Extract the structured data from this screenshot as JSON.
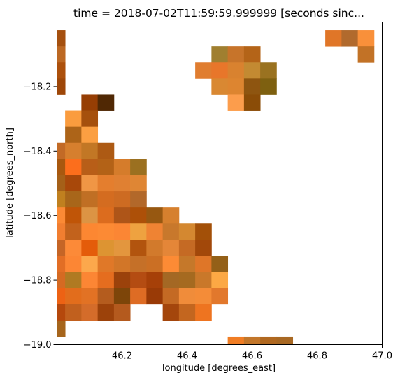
{
  "chart_data": {
    "type": "heatmap",
    "title": "time = 2018-07-02T11:59:59.999999 [seconds sinc...",
    "xlabel": "longitude [degrees_east]",
    "ylabel": "latitude [degrees_north]",
    "xlim": [
      46.0,
      47.0
    ],
    "ylim": [
      -19.0,
      -18.0
    ],
    "x_ticks": [
      46.2,
      46.4,
      46.6,
      46.8,
      47.0
    ],
    "x_tick_labels": [
      "46.2",
      "46.4",
      "46.6",
      "46.8",
      "47.0"
    ],
    "y_ticks": [
      -18.2,
      -18.4,
      -18.6,
      -18.8,
      -19.0
    ],
    "y_tick_labels": [
      "−18.2",
      "−18.4",
      "−18.6",
      "−18.8",
      "−19.0"
    ],
    "grid": false,
    "cell_size": 0.05,
    "cells": [
      {
        "x": 46.0,
        "y": -18.05,
        "c": "#a5500f"
      },
      {
        "x": 46.0,
        "y": -18.1,
        "c": "#bc6823"
      },
      {
        "x": 46.0,
        "y": -18.15,
        "c": "#ac500c"
      },
      {
        "x": 46.0,
        "y": -18.2,
        "c": "#9e4708"
      },
      {
        "x": 46.85,
        "y": -18.05,
        "c": "#e07628"
      },
      {
        "x": 46.9,
        "y": -18.05,
        "c": "#b16a2d"
      },
      {
        "x": 46.95,
        "y": -18.05,
        "c": "#f9903a"
      },
      {
        "x": 46.95,
        "y": -18.1,
        "c": "#c27226"
      },
      {
        "x": 46.5,
        "y": -18.1,
        "c": "#a07f30"
      },
      {
        "x": 46.55,
        "y": -18.1,
        "c": "#c7742a"
      },
      {
        "x": 46.6,
        "y": -18.1,
        "c": "#b46418"
      },
      {
        "x": 46.45,
        "y": -18.15,
        "c": "#e07d30"
      },
      {
        "x": 46.5,
        "y": -18.15,
        "c": "#e8762a"
      },
      {
        "x": 46.55,
        "y": -18.15,
        "c": "#d9822f"
      },
      {
        "x": 46.6,
        "y": -18.15,
        "c": "#c38a32"
      },
      {
        "x": 46.65,
        "y": -18.15,
        "c": "#9a7220"
      },
      {
        "x": 46.5,
        "y": -18.2,
        "c": "#d98832"
      },
      {
        "x": 46.55,
        "y": -18.2,
        "c": "#dd8530"
      },
      {
        "x": 46.6,
        "y": -18.2,
        "c": "#8e5510"
      },
      {
        "x": 46.65,
        "y": -18.2,
        "c": "#7e6010"
      },
      {
        "x": 46.55,
        "y": -18.25,
        "c": "#fc9d4c"
      },
      {
        "x": 46.6,
        "y": -18.25,
        "c": "#8a4c07"
      },
      {
        "x": 46.1,
        "y": -18.25,
        "c": "#963e04"
      },
      {
        "x": 46.15,
        "y": -18.25,
        "c": "#502804"
      },
      {
        "x": 46.05,
        "y": -18.3,
        "c": "#fa9c3e"
      },
      {
        "x": 46.1,
        "y": -18.3,
        "c": "#a5500d"
      },
      {
        "x": 46.05,
        "y": -18.35,
        "c": "#ad6418"
      },
      {
        "x": 46.1,
        "y": -18.35,
        "c": "#fb9f42"
      },
      {
        "x": 46.0,
        "y": -18.4,
        "c": "#c26a26"
      },
      {
        "x": 46.05,
        "y": -18.4,
        "c": "#d67f2e"
      },
      {
        "x": 46.1,
        "y": -18.4,
        "c": "#c27725"
      },
      {
        "x": 46.15,
        "y": -18.4,
        "c": "#ad5a14"
      },
      {
        "x": 46.0,
        "y": -18.45,
        "c": "#a8580f"
      },
      {
        "x": 46.05,
        "y": -18.45,
        "c": "#fc6e1c"
      },
      {
        "x": 46.1,
        "y": -18.45,
        "c": "#b85e18"
      },
      {
        "x": 46.15,
        "y": -18.45,
        "c": "#b36217"
      },
      {
        "x": 46.2,
        "y": -18.45,
        "c": "#d57c2b"
      },
      {
        "x": 46.25,
        "y": -18.45,
        "c": "#9b7020"
      },
      {
        "x": 46.0,
        "y": -18.5,
        "c": "#a56018"
      },
      {
        "x": 46.05,
        "y": -18.5,
        "c": "#a8480a"
      },
      {
        "x": 46.1,
        "y": -18.5,
        "c": "#f09645"
      },
      {
        "x": 46.15,
        "y": -18.5,
        "c": "#e47e2e"
      },
      {
        "x": 46.2,
        "y": -18.5,
        "c": "#e08032"
      },
      {
        "x": 46.25,
        "y": -18.5,
        "c": "#df8634"
      },
      {
        "x": 46.0,
        "y": -18.55,
        "c": "#c0801f"
      },
      {
        "x": 46.05,
        "y": -18.55,
        "c": "#a8661a"
      },
      {
        "x": 46.1,
        "y": -18.55,
        "c": "#c06f24"
      },
      {
        "x": 46.15,
        "y": -18.55,
        "c": "#d46c20"
      },
      {
        "x": 46.2,
        "y": -18.55,
        "c": "#cd6b22"
      },
      {
        "x": 46.25,
        "y": -18.55,
        "c": "#b2682a"
      },
      {
        "x": 46.0,
        "y": -18.6,
        "c": "#fb8a35"
      },
      {
        "x": 46.05,
        "y": -18.6,
        "c": "#c05507"
      },
      {
        "x": 46.1,
        "y": -18.6,
        "c": "#dc9444"
      },
      {
        "x": 46.15,
        "y": -18.6,
        "c": "#dc6c1e"
      },
      {
        "x": 46.2,
        "y": -18.6,
        "c": "#ae5518"
      },
      {
        "x": 46.25,
        "y": -18.6,
        "c": "#ad5008"
      },
      {
        "x": 46.3,
        "y": -18.6,
        "c": "#975811"
      },
      {
        "x": 46.35,
        "y": -18.6,
        "c": "#d6802e"
      },
      {
        "x": 46.0,
        "y": -18.65,
        "c": "#f17e30"
      },
      {
        "x": 46.05,
        "y": -18.65,
        "c": "#c2621c"
      },
      {
        "x": 46.1,
        "y": -18.65,
        "c": "#fc8732"
      },
      {
        "x": 46.15,
        "y": -18.65,
        "c": "#fc8a34"
      },
      {
        "x": 46.2,
        "y": -18.65,
        "c": "#fb8634"
      },
      {
        "x": 46.25,
        "y": -18.65,
        "c": "#eea240"
      },
      {
        "x": 46.3,
        "y": -18.65,
        "c": "#ef8333"
      },
      {
        "x": 46.35,
        "y": -18.65,
        "c": "#c8782c"
      },
      {
        "x": 46.4,
        "y": -18.65,
        "c": "#d48830"
      },
      {
        "x": 46.45,
        "y": -18.65,
        "c": "#a35008"
      },
      {
        "x": 46.0,
        "y": -18.7,
        "c": "#c56526"
      },
      {
        "x": 46.05,
        "y": -18.7,
        "c": "#fc8a38"
      },
      {
        "x": 46.1,
        "y": -18.7,
        "c": "#e45c0a"
      },
      {
        "x": 46.15,
        "y": -18.7,
        "c": "#dd9432"
      },
      {
        "x": 46.2,
        "y": -18.7,
        "c": "#e3963e"
      },
      {
        "x": 46.25,
        "y": -18.7,
        "c": "#b2540e"
      },
      {
        "x": 46.3,
        "y": -18.7,
        "c": "#d27a2c"
      },
      {
        "x": 46.35,
        "y": -18.7,
        "c": "#e48638"
      },
      {
        "x": 46.4,
        "y": -18.7,
        "c": "#c56a24"
      },
      {
        "x": 46.45,
        "y": -18.7,
        "c": "#a2480a"
      },
      {
        "x": 46.0,
        "y": -18.75,
        "c": "#e26e25"
      },
      {
        "x": 46.05,
        "y": -18.75,
        "c": "#fc8634"
      },
      {
        "x": 46.1,
        "y": -18.75,
        "c": "#fca84c"
      },
      {
        "x": 46.15,
        "y": -18.75,
        "c": "#e07828"
      },
      {
        "x": 46.2,
        "y": -18.75,
        "c": "#d27628"
      },
      {
        "x": 46.25,
        "y": -18.75,
        "c": "#c57028"
      },
      {
        "x": 46.3,
        "y": -18.75,
        "c": "#cb6f24"
      },
      {
        "x": 46.35,
        "y": -18.75,
        "c": "#fc8b35"
      },
      {
        "x": 46.4,
        "y": -18.75,
        "c": "#c5782a"
      },
      {
        "x": 46.45,
        "y": -18.75,
        "c": "#df7628"
      },
      {
        "x": 46.5,
        "y": -18.75,
        "c": "#946018"
      },
      {
        "x": 46.0,
        "y": -18.8,
        "c": "#d56a22"
      },
      {
        "x": 46.05,
        "y": -18.8,
        "c": "#b07a22"
      },
      {
        "x": 46.1,
        "y": -18.8,
        "c": "#fc8634"
      },
      {
        "x": 46.15,
        "y": -18.8,
        "c": "#e56d1f"
      },
      {
        "x": 46.2,
        "y": -18.8,
        "c": "#9b420b"
      },
      {
        "x": 46.25,
        "y": -18.8,
        "c": "#b44c12"
      },
      {
        "x": 46.3,
        "y": -18.8,
        "c": "#a64008"
      },
      {
        "x": 46.35,
        "y": -18.8,
        "c": "#a46824"
      },
      {
        "x": 46.4,
        "y": -18.8,
        "c": "#a56a20"
      },
      {
        "x": 46.45,
        "y": -18.8,
        "c": "#c9782a"
      },
      {
        "x": 46.5,
        "y": -18.8,
        "c": "#fca844"
      },
      {
        "x": 46.0,
        "y": -18.85,
        "c": "#ed6214"
      },
      {
        "x": 46.05,
        "y": -18.85,
        "c": "#e26d1c"
      },
      {
        "x": 46.1,
        "y": -18.85,
        "c": "#e27224"
      },
      {
        "x": 46.15,
        "y": -18.85,
        "c": "#b45c1e"
      },
      {
        "x": 46.2,
        "y": -18.85,
        "c": "#7d4509"
      },
      {
        "x": 46.25,
        "y": -18.85,
        "c": "#de6c24"
      },
      {
        "x": 46.3,
        "y": -18.85,
        "c": "#993a06"
      },
      {
        "x": 46.35,
        "y": -18.85,
        "c": "#c46a24"
      },
      {
        "x": 46.4,
        "y": -18.85,
        "c": "#f08c3a"
      },
      {
        "x": 46.45,
        "y": -18.85,
        "c": "#f48c38"
      },
      {
        "x": 46.5,
        "y": -18.85,
        "c": "#e2782c"
      },
      {
        "x": 46.0,
        "y": -18.9,
        "c": "#b5480c"
      },
      {
        "x": 46.05,
        "y": -18.9,
        "c": "#c1601e"
      },
      {
        "x": 46.1,
        "y": -18.9,
        "c": "#d46c2a"
      },
      {
        "x": 46.15,
        "y": -18.9,
        "c": "#9c420a"
      },
      {
        "x": 46.2,
        "y": -18.9,
        "c": "#b45a1e"
      },
      {
        "x": 46.35,
        "y": -18.9,
        "c": "#a4460c"
      },
      {
        "x": 46.4,
        "y": -18.9,
        "c": "#c3661f"
      },
      {
        "x": 46.45,
        "y": -18.9,
        "c": "#ee7420"
      },
      {
        "x": 46.0,
        "y": -18.95,
        "c": "#a6651c"
      },
      {
        "x": 46.55,
        "y": -19.0,
        "c": "#f07d24"
      },
      {
        "x": 46.6,
        "y": -19.0,
        "c": "#c2762a"
      },
      {
        "x": 46.65,
        "y": -19.0,
        "c": "#b06820"
      },
      {
        "x": 46.7,
        "y": -19.0,
        "c": "#a86823"
      }
    ]
  }
}
